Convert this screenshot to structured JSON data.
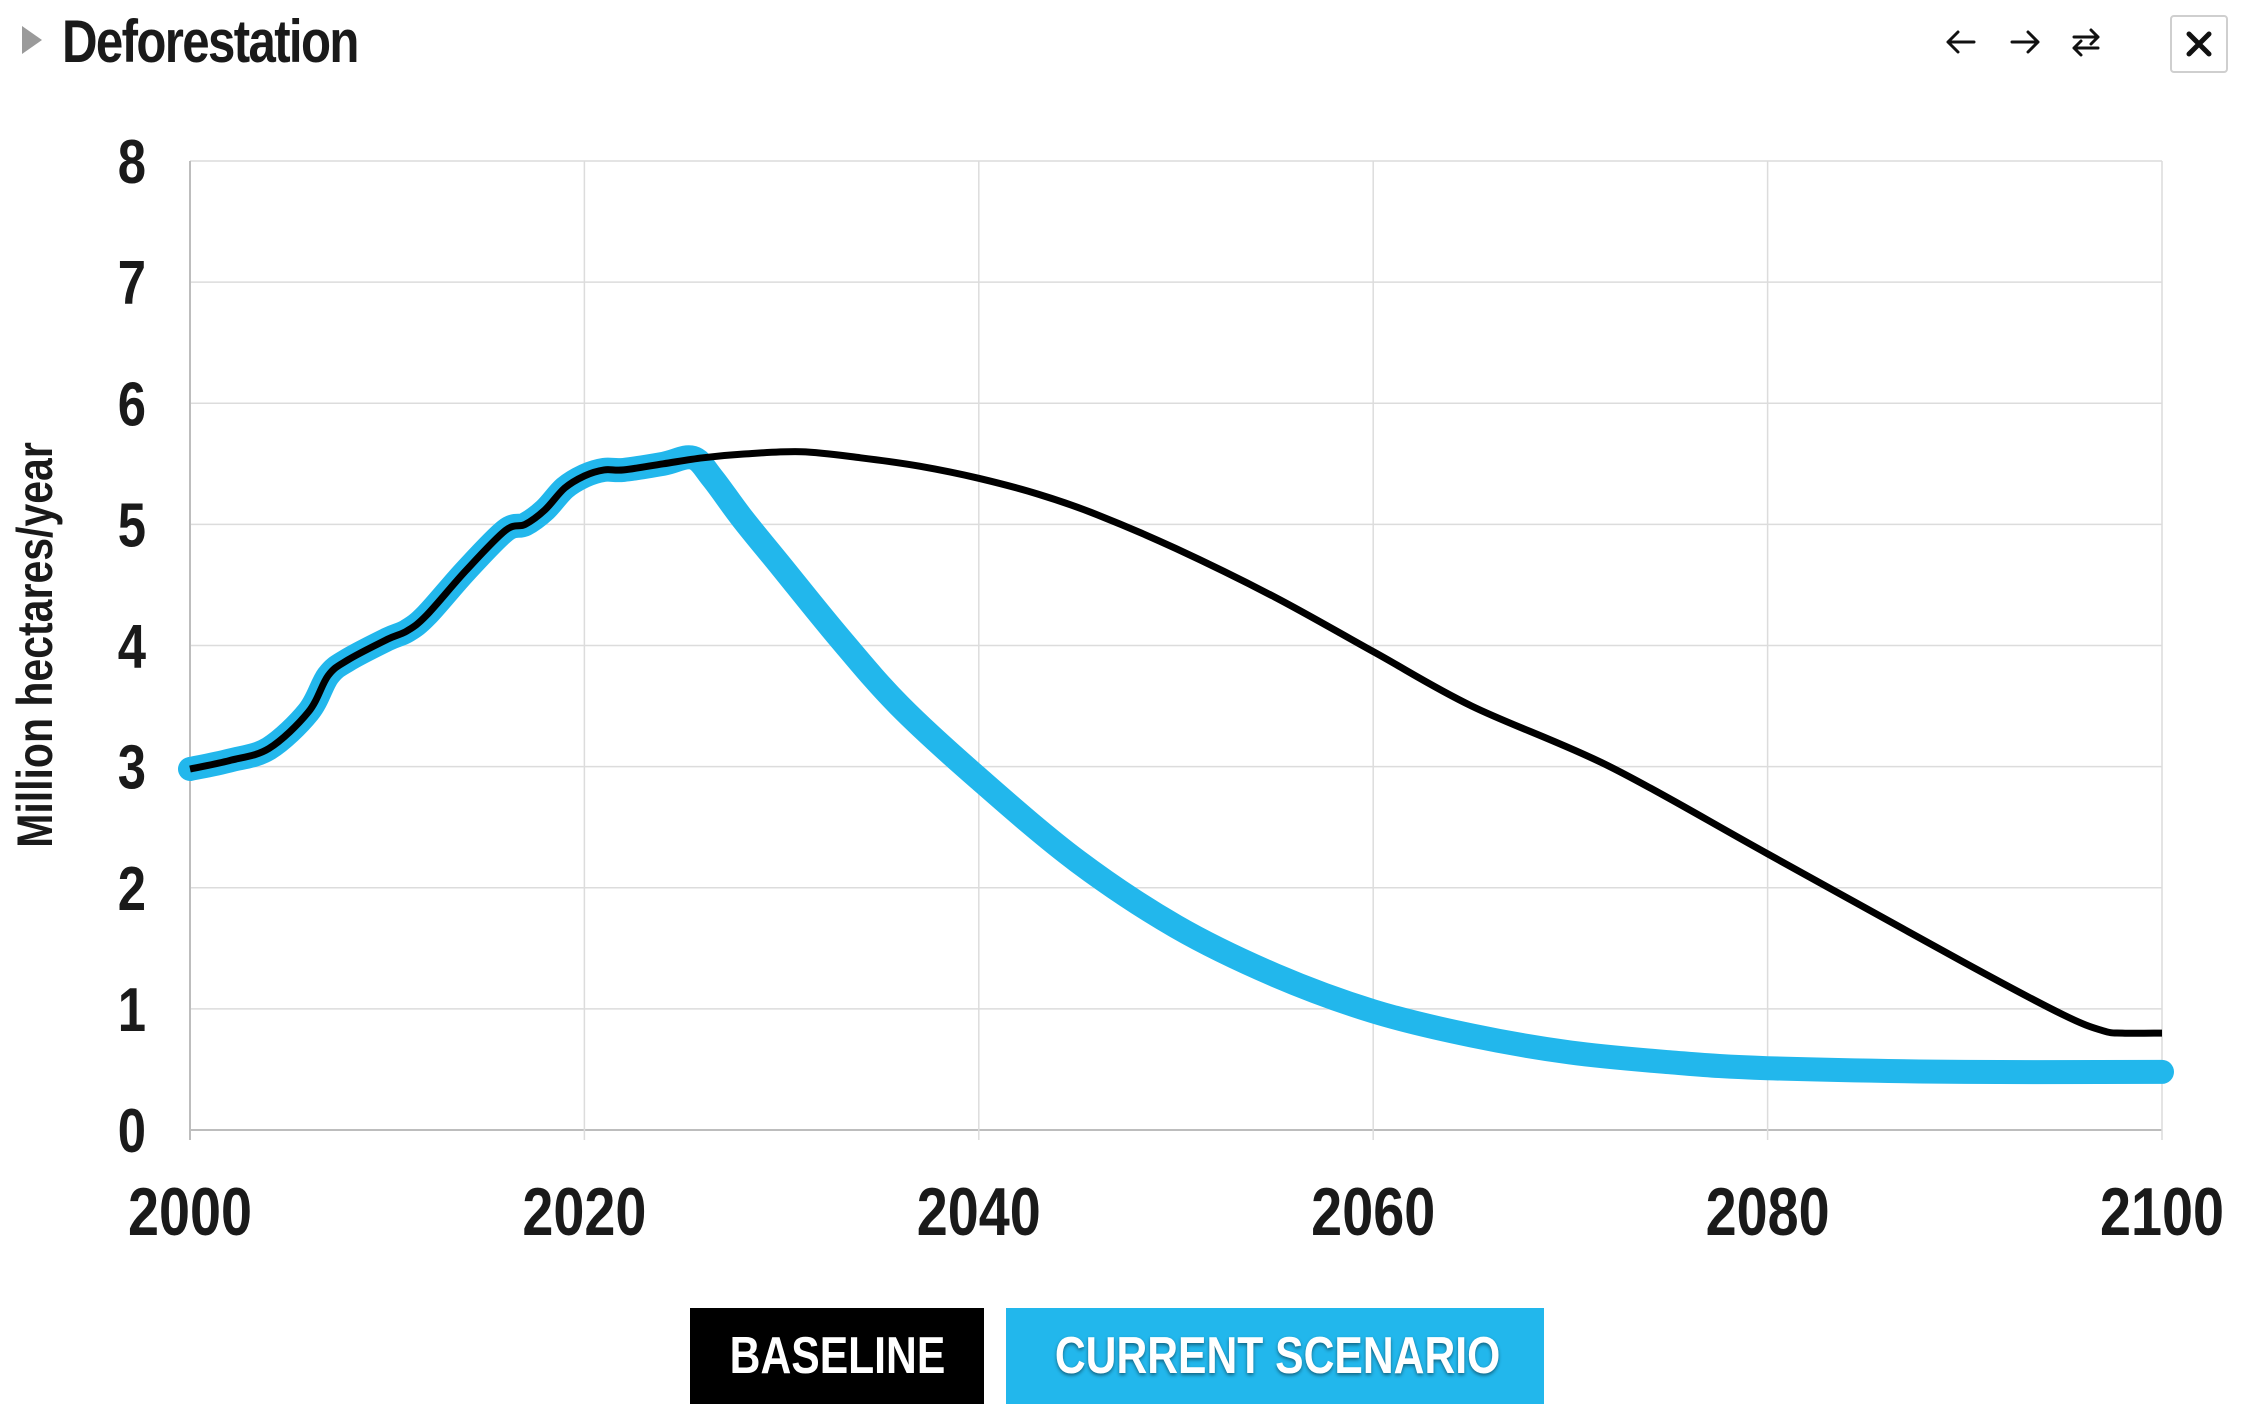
{
  "header": {
    "title": "Deforestation",
    "toggle_icon": "triangle-right-icon",
    "nav_icons": [
      "arrow-left-icon",
      "arrow-right-icon",
      "swap-icon"
    ],
    "close_icon": "close-icon"
  },
  "colors": {
    "baseline": "#000000",
    "current": "#22b7ec",
    "grid": "#dcdcdc",
    "text": "#1a1a1a"
  },
  "legend": {
    "baseline_label": "BASELINE",
    "current_label": "CURRENT SCENARIO"
  },
  "chart_data": {
    "type": "line",
    "title": "",
    "xlabel": "",
    "ylabel": "Million hectares/year",
    "xlim": [
      2000,
      2100
    ],
    "ylim": [
      0,
      8
    ],
    "x_ticks": [
      2000,
      2020,
      2040,
      2060,
      2080,
      2100
    ],
    "y_ticks": [
      0,
      1,
      2,
      3,
      4,
      5,
      6,
      7,
      8
    ],
    "grid": true,
    "legend_position": "bottom-center",
    "series": [
      {
        "name": "BASELINE",
        "color": "#000000",
        "x": [
          2000,
          2002,
          2004,
          2006,
          2007,
          2008,
          2010,
          2011,
          2012,
          2014,
          2016,
          2017,
          2018,
          2019,
          2020,
          2021,
          2022,
          2024,
          2026,
          2028,
          2031,
          2034,
          2037,
          2040,
          2043,
          2046,
          2050,
          2055,
          2060,
          2065,
          2072,
          2080,
          2090,
          2095,
          2097,
          2098,
          2100
        ],
        "y": [
          2.98,
          3.05,
          3.15,
          3.45,
          3.75,
          3.88,
          4.05,
          4.12,
          4.25,
          4.62,
          4.95,
          5.0,
          5.12,
          5.3,
          5.4,
          5.45,
          5.45,
          5.5,
          5.55,
          5.58,
          5.6,
          5.55,
          5.48,
          5.38,
          5.25,
          5.08,
          4.8,
          4.4,
          3.95,
          3.5,
          3.0,
          2.28,
          1.38,
          0.95,
          0.82,
          0.8,
          0.8
        ]
      },
      {
        "name": "CURRENT SCENARIO",
        "color": "#22b7ec",
        "x": [
          2000,
          2002,
          2004,
          2006,
          2007,
          2008,
          2010,
          2011,
          2012,
          2014,
          2016,
          2017,
          2018,
          2019,
          2020,
          2021,
          2022,
          2024,
          2025.5,
          2026.5,
          2028,
          2030,
          2033,
          2036,
          2040,
          2045,
          2050,
          2055,
          2060,
          2065,
          2070,
          2075,
          2080,
          2090,
          2100
        ],
        "y": [
          2.98,
          3.05,
          3.15,
          3.45,
          3.75,
          3.88,
          4.05,
          4.12,
          4.25,
          4.62,
          4.95,
          5.0,
          5.12,
          5.3,
          5.4,
          5.45,
          5.45,
          5.5,
          5.55,
          5.38,
          5.05,
          4.65,
          4.05,
          3.5,
          2.9,
          2.22,
          1.68,
          1.28,
          0.98,
          0.78,
          0.64,
          0.56,
          0.51,
          0.48,
          0.48
        ]
      }
    ]
  }
}
